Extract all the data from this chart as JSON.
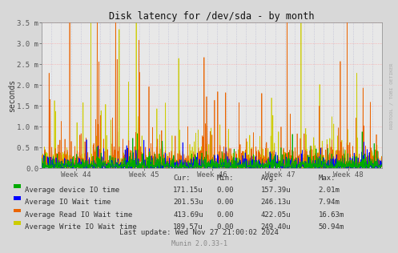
{
  "title": "Disk latency for /dev/sda - by month",
  "ylabel": "seconds",
  "background_color": "#d8d8d8",
  "plot_bg_color": "#e8e8e8",
  "grid_color_h": "#ff9999",
  "grid_color_v": "#aaaacc",
  "ylim": [
    0,
    0.0035
  ],
  "yticks": [
    0.0,
    0.0005,
    0.001,
    0.0015,
    0.002,
    0.0025,
    0.003,
    0.0035
  ],
  "ytick_labels": [
    "0.0",
    "0.5 m",
    "1.0 m",
    "1.5 m",
    "2.0 m",
    "2.5 m",
    "3.0 m",
    "3.5 m"
  ],
  "xtick_labels": [
    "Week 44",
    "Week 45",
    "Week 46",
    "Week 47",
    "Week 48"
  ],
  "series_colors": [
    "#00aa00",
    "#0000ff",
    "#ea6400",
    "#cccc00"
  ],
  "legend_entries": [
    {
      "label": "Average device IO time",
      "cur": "171.15u",
      "min": "0.00",
      "avg": "157.39u",
      "max": "2.01m",
      "color": "#00aa00"
    },
    {
      "label": "Average IO Wait time",
      "cur": "201.53u",
      "min": "0.00",
      "avg": "246.13u",
      "max": "7.94m",
      "color": "#0000ff"
    },
    {
      "label": "Average Read IO Wait time",
      "cur": "413.69u",
      "min": "0.00",
      "avg": "422.05u",
      "max": "16.63m",
      "color": "#ea6400"
    },
    {
      "label": "Average Write IO Wait time",
      "cur": "189.57u",
      "min": "0.00",
      "avg": "249.40u",
      "max": "50.94m",
      "color": "#cccc00"
    }
  ],
  "last_update": "Last update: Wed Nov 27 21:00:02 2024",
  "munin_version": "Munin 2.0.33-1",
  "watermark": "RRDTOOL / TOBI OETIKER",
  "n_points": 1500,
  "seed": 42
}
